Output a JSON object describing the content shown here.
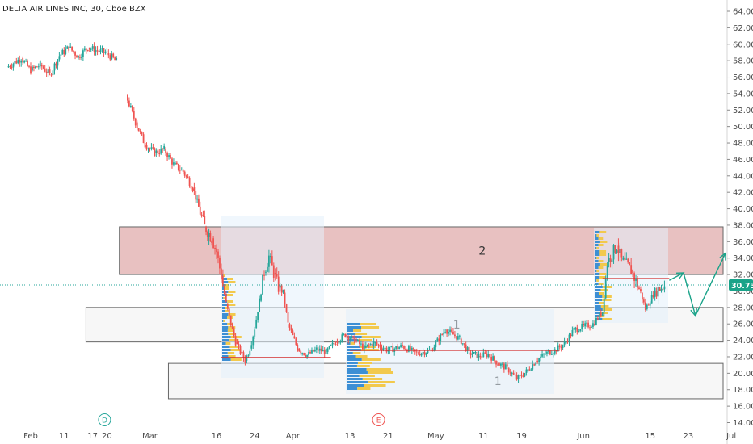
{
  "chart_data": {
    "type": "candlestick",
    "title": "DELTA AIR LINES INC, 30, Cboe BZX",
    "ylim": [
      13,
      65
    ],
    "y_ticks": [
      "64.00",
      "62.00",
      "60.00",
      "58.00",
      "56.00",
      "54.00",
      "52.00",
      "50.00",
      "48.00",
      "46.00",
      "44.00",
      "42.00",
      "40.00",
      "38.00",
      "36.00",
      "34.00",
      "32.00",
      "30.00",
      "28.00",
      "26.00",
      "24.00",
      "22.00",
      "20.00",
      "18.00",
      "16.00",
      "14.00"
    ],
    "x_ticks": [
      {
        "label": "Feb",
        "day": 0
      },
      {
        "label": "11",
        "day": 7
      },
      {
        "label": "17",
        "day": 13
      },
      {
        "label": "20",
        "day": 16
      },
      {
        "label": "Mar",
        "day": 25
      },
      {
        "label": "16",
        "day": 39
      },
      {
        "label": "24",
        "day": 47
      },
      {
        "label": "Apr",
        "day": 55
      },
      {
        "label": "13",
        "day": 67
      },
      {
        "label": "21",
        "day": 75
      },
      {
        "label": "May",
        "day": 85
      },
      {
        "label": "11",
        "day": 95
      },
      {
        "label": "19",
        "day": 103
      },
      {
        "label": "Jun",
        "day": 116
      },
      {
        "label": "15",
        "day": 130
      },
      {
        "label": "23",
        "day": 138
      },
      {
        "label": "Jul",
        "day": 146
      }
    ],
    "last_price": "30.73",
    "last_price_value": 30.73,
    "markers": [
      {
        "label": "D",
        "day": 15.5,
        "color": "#26a69a"
      },
      {
        "label": "E",
        "day": 73,
        "color": "#ef5350"
      }
    ],
    "zones": [
      {
        "label": "2",
        "y_top": 37.8,
        "y_bottom": 32.0,
        "day_start": 18.6,
        "day_end": 146.5,
        "fill": "#e8c1c1",
        "stroke": "#666666"
      },
      {
        "label": "1",
        "y_top": 28.0,
        "y_bottom": 23.8,
        "day_start": 11.6,
        "day_end": 146.5,
        "fill": "#f7f7f7",
        "stroke": "#666666"
      },
      {
        "label": "1",
        "y_top": 21.2,
        "y_bottom": 16.9,
        "day_start": 28.9,
        "day_end": 146.5,
        "fill": "#f7f7f7",
        "stroke": "#666666"
      }
    ],
    "poc_lines": [
      {
        "day_start": 40,
        "day_end": 63,
        "y": 21.9
      },
      {
        "day_start": 67,
        "day_end": 111,
        "y": 22.8
      },
      {
        "day_start": 120,
        "day_end": 134,
        "y": 31.5
      }
    ],
    "projection_arrow": [
      {
        "day": 134,
        "y": 31.3
      },
      {
        "day": 137,
        "y": 32.2
      },
      {
        "day": 139.5,
        "y": 27.0
      },
      {
        "day": 145.8,
        "y": 34.6
      }
    ],
    "price_path": [
      {
        "day": -5,
        "y": 57.2
      },
      {
        "day": -2,
        "y": 58.3
      },
      {
        "day": 0,
        "y": 56.8
      },
      {
        "day": 2,
        "y": 57.5
      },
      {
        "day": 4,
        "y": 56.3
      },
      {
        "day": 6,
        "y": 58.6
      },
      {
        "day": 8,
        "y": 59.6
      },
      {
        "day": 10,
        "y": 58.5
      },
      {
        "day": 12,
        "y": 59.6
      },
      {
        "day": 14,
        "y": 59.2
      },
      {
        "day": 16,
        "y": 58.9
      },
      {
        "day": 18,
        "y": 57.9
      },
      {
        "day": 20,
        "y": 53.8
      },
      {
        "day": 22,
        "y": 50.5
      },
      {
        "day": 24,
        "y": 47.8
      },
      {
        "day": 26,
        "y": 46.8
      },
      {
        "day": 28,
        "y": 47.2
      },
      {
        "day": 30,
        "y": 45.4
      },
      {
        "day": 32,
        "y": 44.5
      },
      {
        "day": 34,
        "y": 42.6
      },
      {
        "day": 36.5,
        "y": 37.8
      },
      {
        "day": 38,
        "y": 36.4
      },
      {
        "day": 39,
        "y": 34.8
      },
      {
        "day": 40,
        "y": 31.8
      },
      {
        "day": 41,
        "y": 28.5
      },
      {
        "day": 42,
        "y": 26.0
      },
      {
        "day": 43,
        "y": 23.8
      },
      {
        "day": 44,
        "y": 22.6
      },
      {
        "day": 45,
        "y": 21.5
      },
      {
        "day": 46,
        "y": 23.0
      },
      {
        "day": 47,
        "y": 25.5
      },
      {
        "day": 48,
        "y": 28.8
      },
      {
        "day": 49,
        "y": 32.3
      },
      {
        "day": 50,
        "y": 34.2
      },
      {
        "day": 51,
        "y": 32.2
      },
      {
        "day": 52,
        "y": 30.4
      },
      {
        "day": 53,
        "y": 29.8
      },
      {
        "day": 54,
        "y": 26.0
      },
      {
        "day": 55,
        "y": 24.5
      },
      {
        "day": 56,
        "y": 23.0
      },
      {
        "day": 58,
        "y": 22.2
      },
      {
        "day": 60,
        "y": 22.9
      },
      {
        "day": 62,
        "y": 22.6
      },
      {
        "day": 64,
        "y": 23.8
      },
      {
        "day": 66,
        "y": 24.7
      },
      {
        "day": 68,
        "y": 24.0
      },
      {
        "day": 70,
        "y": 23.1
      },
      {
        "day": 72,
        "y": 23.7
      },
      {
        "day": 75,
        "y": 22.8
      },
      {
        "day": 78,
        "y": 23.3
      },
      {
        "day": 81,
        "y": 22.4
      },
      {
        "day": 84,
        "y": 22.8
      },
      {
        "day": 87,
        "y": 25.3
      },
      {
        "day": 90,
        "y": 24.2
      },
      {
        "day": 92,
        "y": 22.5
      },
      {
        "day": 94,
        "y": 22.1
      },
      {
        "day": 96,
        "y": 22.3
      },
      {
        "day": 98,
        "y": 21.2
      },
      {
        "day": 100,
        "y": 20.6
      },
      {
        "day": 102,
        "y": 19.3
      },
      {
        "day": 104,
        "y": 20.2
      },
      {
        "day": 106,
        "y": 21.5
      },
      {
        "day": 108,
        "y": 22.4
      },
      {
        "day": 110,
        "y": 22.8
      },
      {
        "day": 112,
        "y": 23.6
      },
      {
        "day": 114,
        "y": 25.3
      },
      {
        "day": 116,
        "y": 25.7
      },
      {
        "day": 118,
        "y": 26.0
      },
      {
        "day": 120,
        "y": 27.5
      },
      {
        "day": 121,
        "y": 33.5
      },
      {
        "day": 123,
        "y": 35.5
      },
      {
        "day": 124,
        "y": 33.8
      },
      {
        "day": 126,
        "y": 32.5
      },
      {
        "day": 128,
        "y": 29.8
      },
      {
        "day": 129,
        "y": 27.8
      },
      {
        "day": 131,
        "y": 30.0
      },
      {
        "day": 133,
        "y": 30.7
      }
    ],
    "gap_after_day": 18
  }
}
